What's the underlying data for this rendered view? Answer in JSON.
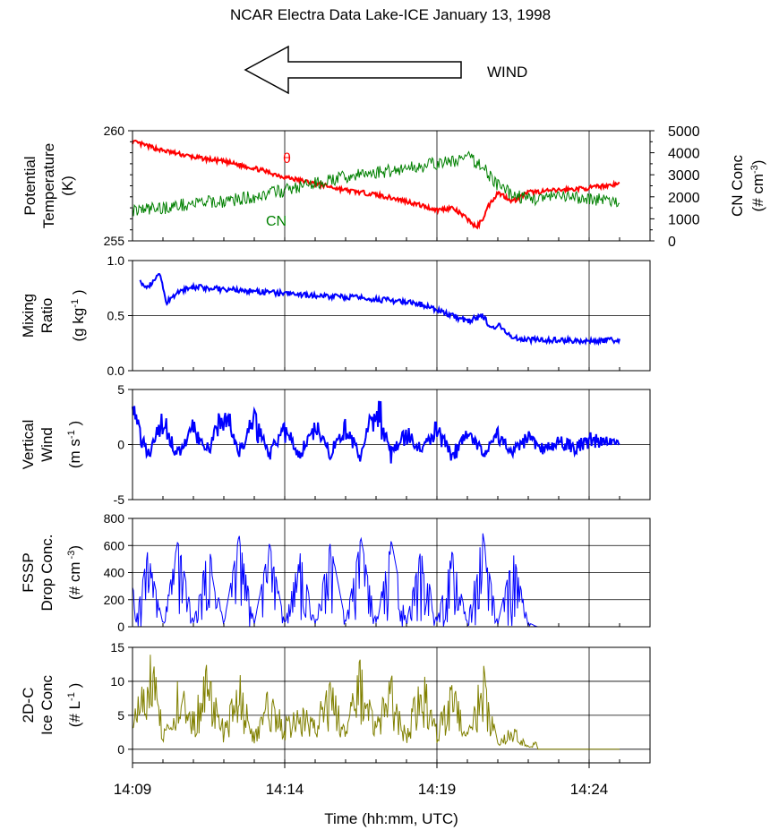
{
  "figure": {
    "title": "NCAR Electra Data Lake-ICE January 13, 1998",
    "wind_label": "WIND",
    "xlabel": "Time (hh:mm, UTC)",
    "x_ticks": [
      "14:09",
      "14:14",
      "14:19",
      "14:24"
    ]
  },
  "colors": {
    "theta": "#ff0000",
    "cn": "#008000",
    "mixing": "#0000ff",
    "wind": "#0000ff",
    "fssp": "#0000ff",
    "ice": "#808000"
  },
  "chart_data": [
    {
      "type": "line",
      "title": "Potential Temperature / CN Conc",
      "ylabel_lines": [
        "Potential",
        "Temperature",
        "(K)"
      ],
      "y2label_lines": [
        "CN Conc",
        "(# cm-3)"
      ],
      "y2label_parts": [
        "CN Conc",
        "(# cm",
        "-3",
        ")"
      ],
      "xlim": [
        9,
        26
      ],
      "ylim": [
        255,
        260
      ],
      "y_ticks": [
        "260",
        "255"
      ],
      "y2lim": [
        0,
        5000
      ],
      "y2_ticks": [
        "5000",
        "4000",
        "3000",
        "2000",
        "1000",
        "0"
      ],
      "series": [
        {
          "name": "θ",
          "axis": "left",
          "x": [
            9,
            9.5,
            10,
            11,
            12,
            13,
            14,
            15,
            16,
            17,
            18,
            19,
            19.5,
            20,
            20.3,
            20.5,
            20.7,
            21,
            21.5,
            22,
            23,
            24,
            24.5,
            25
          ],
          "y": [
            259.5,
            259.3,
            259.1,
            258.8,
            258.6,
            258.3,
            257.9,
            257.6,
            257.3,
            257.1,
            256.8,
            256.4,
            256.5,
            256.0,
            255.6,
            256.0,
            256.6,
            257.2,
            256.8,
            257.2,
            257.3,
            257.4,
            257.5,
            257.6
          ]
        },
        {
          "name": "CN",
          "axis": "right",
          "x": [
            9,
            10,
            11,
            12,
            13,
            14,
            15,
            16,
            17,
            18,
            19,
            19.5,
            20,
            20.5,
            21,
            21.5,
            22,
            23,
            24,
            24.5,
            25
          ],
          "y": [
            1400,
            1500,
            1700,
            1800,
            2000,
            2300,
            2600,
            2900,
            3100,
            3300,
            3500,
            3600,
            3800,
            3400,
            2500,
            2100,
            1900,
            2000,
            1900,
            1900,
            1600
          ]
        }
      ],
      "annotations": [
        "θ",
        "CN"
      ]
    },
    {
      "type": "line",
      "title": "Mixing Ratio",
      "ylabel_lines": [
        "Mixing",
        "Ratio"
      ],
      "yunit_parts": [
        "(g kg",
        "-1",
        " )"
      ],
      "xlim": [
        9,
        26
      ],
      "ylim": [
        0,
        1
      ],
      "y_ticks": [
        "1.0",
        "0.5",
        "0.0"
      ],
      "series": [
        {
          "name": "Mixing Ratio",
          "x": [
            9.25,
            9.5,
            9.9,
            10.1,
            10.5,
            11,
            12,
            13,
            14,
            15,
            16,
            17,
            18,
            18.5,
            19,
            19.5,
            20,
            20.5,
            20.8,
            21,
            21.5,
            22,
            23,
            24,
            25
          ],
          "y": [
            0.8,
            0.76,
            0.88,
            0.62,
            0.72,
            0.76,
            0.74,
            0.72,
            0.7,
            0.68,
            0.67,
            0.65,
            0.62,
            0.6,
            0.55,
            0.5,
            0.45,
            0.5,
            0.38,
            0.42,
            0.3,
            0.28,
            0.28,
            0.27,
            0.28
          ]
        }
      ]
    },
    {
      "type": "line",
      "title": "Vertical Wind",
      "ylabel_lines": [
        "Vertical",
        "Wind"
      ],
      "yunit_parts": [
        "(m s",
        "-1",
        " )"
      ],
      "xlim": [
        9,
        26
      ],
      "ylim": [
        -5,
        5
      ],
      "y_ticks": [
        "5",
        "0",
        "-5"
      ],
      "series": [
        {
          "name": "Vertical Wind",
          "x": [
            9,
            9.5,
            10,
            10.5,
            11,
            11.5,
            12,
            12.5,
            13,
            13.5,
            14,
            14.5,
            15,
            15.5,
            16,
            16.5,
            17,
            17.5,
            18,
            18.5,
            19,
            19.5,
            20,
            20.5,
            21,
            21.5,
            22,
            22.5,
            23,
            23.5,
            24,
            24.5,
            25
          ],
          "y": [
            3.8,
            -1.2,
            2.5,
            -1.5,
            2.0,
            -0.8,
            4.0,
            -1.0,
            3.0,
            -1.0,
            1.8,
            -1.4,
            2.4,
            -1.2,
            2.0,
            -1.5,
            4.8,
            -1.2,
            1.5,
            -1.0,
            2.0,
            -1.5,
            1.5,
            -1.0,
            1.2,
            -0.8,
            0.8,
            -0.6,
            0.4,
            -0.5,
            0.6,
            0.2,
            0.0
          ]
        }
      ]
    },
    {
      "type": "line",
      "title": "FSSP Drop Conc.",
      "ylabel_lines": [
        "FSSP",
        "Drop Conc."
      ],
      "yunit_parts": [
        "(# cm",
        " -3",
        ")"
      ],
      "xlim": [
        9,
        26
      ],
      "ylim": [
        0,
        800
      ],
      "y_ticks": [
        "800",
        "600",
        "400",
        "200",
        "0"
      ],
      "series": [
        {
          "name": "FSSP Drop Conc.",
          "x": [
            9,
            9.1,
            9.5,
            10,
            10.5,
            11,
            11.5,
            12,
            12.5,
            13,
            13.5,
            14,
            14.5,
            15,
            15.5,
            16,
            16.5,
            17,
            17.5,
            18,
            18.5,
            19,
            19.5,
            20,
            20.5,
            21,
            21.5,
            22,
            22.3,
            23,
            24,
            25
          ],
          "y": [
            500,
            30,
            560,
            20,
            650,
            30,
            600,
            20,
            680,
            20,
            620,
            20,
            550,
            20,
            620,
            30,
            660,
            40,
            640,
            30,
            600,
            40,
            560,
            30,
            700,
            20,
            550,
            30,
            0,
            0,
            0,
            0
          ]
        }
      ]
    },
    {
      "type": "line",
      "title": "2D-C Ice Conc",
      "ylabel_lines": [
        "2D-C",
        "Ice Conc"
      ],
      "yunit_parts": [
        "(# L",
        "-1",
        " )"
      ],
      "xlim": [
        9,
        26
      ],
      "ylim": [
        -2,
        15
      ],
      "y_ticks": [
        "15",
        "10",
        "5",
        "0"
      ],
      "series": [
        {
          "name": "2D-C Ice Conc",
          "x": [
            9,
            9.5,
            9.8,
            10,
            10.5,
            11,
            11.5,
            12,
            12.5,
            13,
            13.5,
            14,
            14.5,
            15,
            15.5,
            16,
            16.5,
            17,
            17.5,
            18,
            18.5,
            19,
            19.5,
            20,
            20.5,
            21,
            21.5,
            22,
            22.3,
            23,
            24,
            25
          ],
          "y": [
            4,
            11,
            14,
            2,
            9,
            5,
            12,
            3,
            10,
            2,
            8,
            4,
            6,
            5,
            9,
            3,
            12,
            4,
            10,
            2,
            11,
            3,
            9,
            2,
            11,
            1,
            3,
            0.5,
            1,
            0,
            0,
            0
          ]
        }
      ]
    }
  ]
}
